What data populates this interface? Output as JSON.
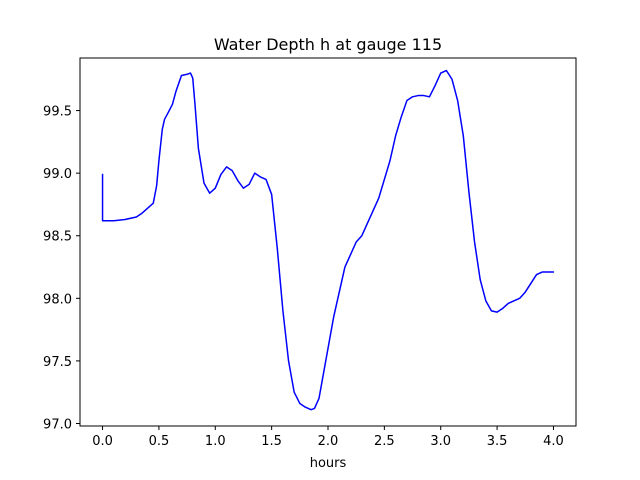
{
  "chart_data": {
    "type": "line",
    "title": "Water Depth h at gauge 115",
    "xlabel": "hours",
    "ylabel": "",
    "xlim": [
      -0.2,
      4.2
    ],
    "ylim": [
      96.98,
      99.92
    ],
    "x_ticks": [
      0.0,
      0.5,
      1.0,
      1.5,
      2.0,
      2.5,
      3.0,
      3.5,
      4.0
    ],
    "x_tick_labels": [
      "0.0",
      "0.5",
      "1.0",
      "1.5",
      "2.0",
      "2.5",
      "3.0",
      "3.5",
      "4.0"
    ],
    "y_ticks": [
      97.0,
      97.5,
      98.0,
      98.5,
      99.0,
      99.5
    ],
    "y_tick_labels": [
      "97.0",
      "97.5",
      "98.0",
      "98.5",
      "99.0",
      "99.5"
    ],
    "grid": false,
    "legend": "none",
    "series": [
      {
        "color": "#0000ff",
        "x": [
          0.0,
          0.0,
          0.1,
          0.2,
          0.3,
          0.35,
          0.4,
          0.45,
          0.48,
          0.5,
          0.53,
          0.55,
          0.58,
          0.62,
          0.65,
          0.7,
          0.75,
          0.78,
          0.8,
          0.82,
          0.85,
          0.9,
          0.95,
          1.0,
          1.05,
          1.1,
          1.15,
          1.2,
          1.25,
          1.3,
          1.35,
          1.4,
          1.45,
          1.5,
          1.55,
          1.6,
          1.65,
          1.7,
          1.75,
          1.8,
          1.85,
          1.88,
          1.92,
          1.95,
          2.0,
          2.05,
          2.1,
          2.15,
          2.2,
          2.25,
          2.3,
          2.35,
          2.4,
          2.45,
          2.5,
          2.55,
          2.6,
          2.65,
          2.7,
          2.75,
          2.8,
          2.85,
          2.9,
          2.95,
          3.0,
          3.05,
          3.1,
          3.15,
          3.2,
          3.25,
          3.3,
          3.35,
          3.4,
          3.45,
          3.5,
          3.55,
          3.6,
          3.65,
          3.7,
          3.75,
          3.8,
          3.85,
          3.9,
          3.95,
          4.0
        ],
        "y": [
          98.99,
          98.62,
          98.62,
          98.63,
          98.65,
          98.68,
          98.72,
          98.76,
          98.9,
          99.1,
          99.35,
          99.43,
          99.48,
          99.55,
          99.65,
          99.78,
          99.79,
          99.8,
          99.76,
          99.55,
          99.2,
          98.92,
          98.84,
          98.88,
          98.99,
          99.05,
          99.02,
          98.94,
          98.88,
          98.91,
          99.0,
          98.97,
          98.95,
          98.83,
          98.4,
          97.9,
          97.5,
          97.25,
          97.16,
          97.13,
          97.11,
          97.12,
          97.2,
          97.35,
          97.6,
          97.85,
          98.05,
          98.25,
          98.35,
          98.45,
          98.5,
          98.6,
          98.7,
          98.8,
          98.95,
          99.1,
          99.3,
          99.45,
          99.58,
          99.61,
          99.62,
          99.62,
          99.61,
          99.7,
          99.8,
          99.82,
          99.75,
          99.58,
          99.3,
          98.85,
          98.45,
          98.15,
          97.98,
          97.9,
          97.89,
          97.92,
          97.96,
          97.98,
          98.0,
          98.05,
          98.12,
          98.19,
          98.21,
          98.21,
          98.21
        ]
      }
    ]
  }
}
